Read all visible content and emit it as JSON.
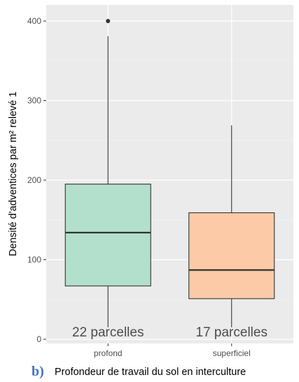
{
  "chart_data": {
    "type": "boxplot",
    "title": "",
    "panel_letter": "b)",
    "xlabel": "Profondeur de travail du sol en interculture",
    "ylabel": "Densité d'adventices par m² relevé 1",
    "ylim": [
      0,
      420
    ],
    "yticks": [
      0,
      100,
      200,
      300,
      400
    ],
    "grid": true,
    "background": "#ebebeb",
    "categories": [
      "profond",
      "superficiel"
    ],
    "boxes": [
      {
        "category": "profond",
        "min": 15,
        "q1": 67,
        "median": 134,
        "q3": 195,
        "max": 381,
        "outliers": [
          400
        ],
        "color": "#b2e0cc",
        "count_label": "22 parcelles"
      },
      {
        "category": "superficiel",
        "min": 15,
        "q1": 51,
        "median": 87,
        "q3": 159,
        "max": 269,
        "outliers": [],
        "color": "#fdcaa7",
        "count_label": "17 parcelles"
      }
    ]
  }
}
